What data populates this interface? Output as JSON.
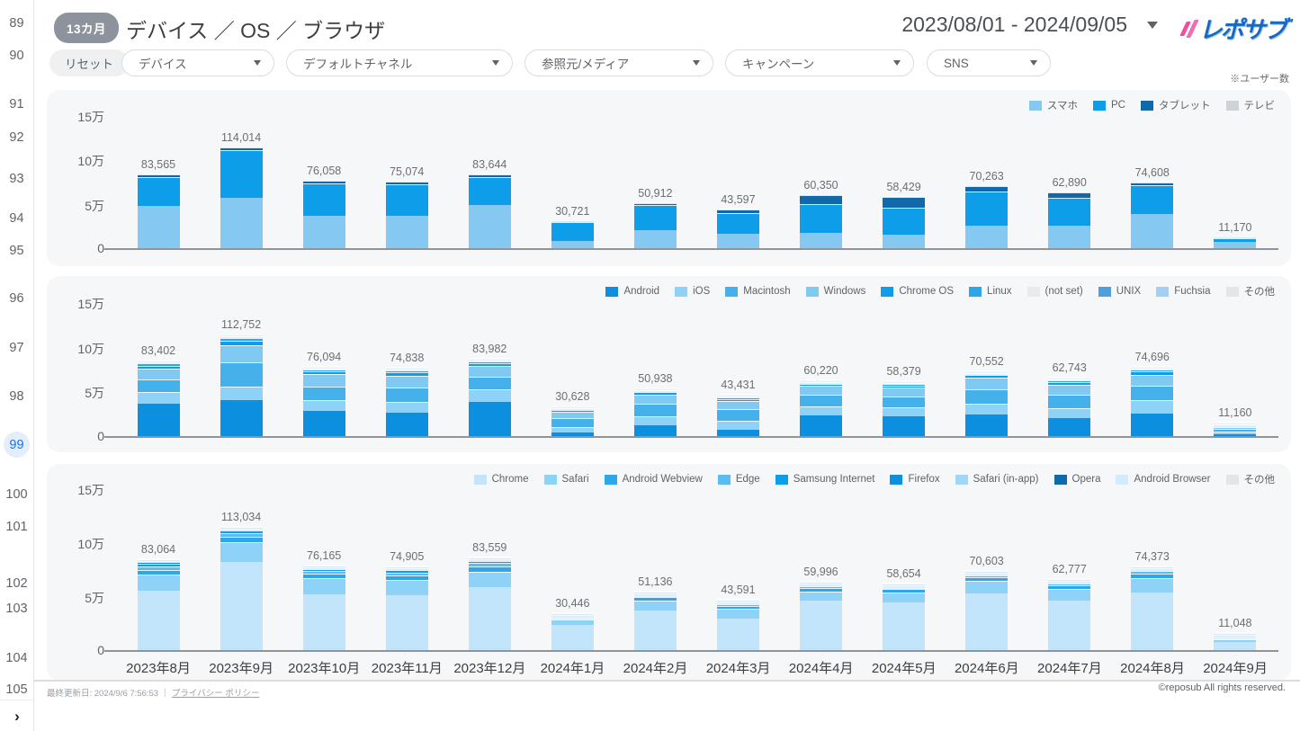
{
  "sidebar": {
    "pages": [
      "89",
      "90",
      "91",
      "92",
      "93",
      "94",
      "95",
      "96",
      "97",
      "98",
      "99",
      "100",
      "101",
      "102",
      "103",
      "104",
      "105"
    ],
    "active_page": "99",
    "next_icon": "›"
  },
  "header": {
    "period_badge": "13カ月",
    "title": "デバイス ／ OS ／ ブラウザ",
    "date_range": "2023/08/01 - 2024/09/05",
    "logo_text": "レポサブ",
    "unit_note": "※ユーザー数"
  },
  "filters": {
    "reset_label": "リセット",
    "dropdowns": [
      "デバイス",
      "デフォルトチャネル",
      "参照元/メディア",
      "キャンペーン",
      "SNS"
    ]
  },
  "chart_data": [
    {
      "type": "bar",
      "name": "device-users-stacked-bar",
      "title": "",
      "xlabel": "",
      "ylabel": "ユーザー数",
      "y_ticks": [
        "15万",
        "10万",
        "5万",
        "0"
      ],
      "y_max": 150000,
      "grid": false,
      "legend_position": "top-right",
      "show_x_labels": false,
      "categories": [
        "2023年8月",
        "2023年9月",
        "2023年10月",
        "2023年11月",
        "2023年12月",
        "2024年1月",
        "2024年2月",
        "2024年3月",
        "2024年4月",
        "2024年5月",
        "2024年6月",
        "2024年7月",
        "2024年8月",
        "2024年9月"
      ],
      "totals": [
        83565,
        114014,
        76058,
        75074,
        83644,
        30721,
        50912,
        43597,
        60350,
        58429,
        70263,
        62890,
        74608,
        11170
      ],
      "series": [
        {
          "name": "スマホ",
          "color": "#85c9f3",
          "values": [
            47500,
            56500,
            37000,
            36000,
            48500,
            8200,
            20500,
            16500,
            17500,
            15000,
            25500,
            25500,
            38500,
            7100
          ]
        },
        {
          "name": "PC",
          "color": "#0d9de9",
          "values": [
            32500,
            53500,
            35500,
            35500,
            31500,
            21000,
            27800,
            22800,
            31800,
            30800,
            38500,
            31000,
            32500,
            3800
          ]
        },
        {
          "name": "タブレット",
          "color": "#1168ab",
          "values": [
            3200,
            3700,
            3300,
            3300,
            3400,
            1400,
            2400,
            4100,
            10800,
            12400,
            6000,
            6100,
            3400,
            250
          ]
        },
        {
          "name": "テレビ",
          "color": "#ccd4da",
          "values": [
            365,
            314,
            258,
            274,
            244,
            121,
            212,
            197,
            250,
            229,
            263,
            290,
            208,
            20
          ]
        }
      ]
    },
    {
      "type": "bar",
      "name": "os-users-stacked-bar",
      "title": "",
      "xlabel": "",
      "ylabel": "ユーザー数",
      "y_ticks": [
        "15万",
        "10万",
        "5万",
        "0"
      ],
      "y_max": 150000,
      "grid": false,
      "legend_position": "top-right",
      "show_x_labels": false,
      "categories": [
        "2023年8月",
        "2023年9月",
        "2023年10月",
        "2023年11月",
        "2023年12月",
        "2024年1月",
        "2024年2月",
        "2024年3月",
        "2024年4月",
        "2024年5月",
        "2024年6月",
        "2024年7月",
        "2024年8月",
        "2024年9月"
      ],
      "totals": [
        83402,
        112752,
        76094,
        74838,
        83982,
        30628,
        50938,
        43431,
        60220,
        58379,
        70552,
        62743,
        74696,
        11160
      ],
      "series": [
        {
          "name": "Android",
          "color": "#0d8fe0",
          "values": [
            36000,
            40000,
            28000,
            26500,
            38500,
            4000,
            12500,
            7500,
            23000,
            22000,
            24000,
            20000,
            25500,
            2500
          ]
        },
        {
          "name": "iOS",
          "color": "#8ed2f7",
          "values": [
            13000,
            15000,
            12500,
            12000,
            13500,
            6500,
            10000,
            9500,
            10500,
            10000,
            12500,
            11500,
            14500,
            2800
          ]
        },
        {
          "name": "Macintosh",
          "color": "#45b1ea",
          "values": [
            14000,
            28000,
            15000,
            15500,
            14500,
            9500,
            13500,
            13000,
            13000,
            12500,
            16000,
            14500,
            16500,
            3200
          ]
        },
        {
          "name": "Windows",
          "color": "#7fc9f3",
          "values": [
            12500,
            19000,
            13500,
            13500,
            12000,
            7500,
            10500,
            9500,
            9500,
            9500,
            12500,
            11500,
            12500,
            1900
          ]
        },
        {
          "name": "Chrome OS",
          "color": "#0d9de9",
          "values": [
            3300,
            5200,
            3500,
            3800,
            3200,
            1800,
            2600,
            2300,
            2700,
            2800,
            3500,
            3200,
            3700,
            500
          ]
        },
        {
          "name": "Linux",
          "color": "#2ca7ea",
          "values": [
            2300,
            3000,
            2100,
            2200,
            1500,
            900,
            1200,
            1100,
            1100,
            1200,
            1500,
            1500,
            1500,
            200
          ]
        },
        {
          "name": "(not set)",
          "color": "#e8eaec",
          "values": [
            1200,
            1400,
            900,
            900,
            500,
            300,
            400,
            350,
            300,
            280,
            400,
            400,
            380,
            45
          ]
        },
        {
          "name": "UNIX",
          "color": "#4f9fdd",
          "values": [
            600,
            700,
            400,
            300,
            200,
            100,
            180,
            140,
            100,
            80,
            120,
            120,
            90,
            12
          ]
        },
        {
          "name": "Fuchsia",
          "color": "#a6cdf2",
          "values": [
            300,
            300,
            150,
            100,
            60,
            20,
            50,
            30,
            15,
            14,
            25,
            18,
            20,
            2
          ]
        },
        {
          "name": "その他",
          "color": "#e3e6e8",
          "values": [
            202,
            152,
            44,
            38,
            22,
            8,
            8,
            11,
            5,
            5,
            7,
            5,
            6,
            1
          ]
        }
      ]
    },
    {
      "type": "bar",
      "name": "browser-users-stacked-bar",
      "title": "",
      "xlabel": "",
      "ylabel": "ユーザー数",
      "y_ticks": [
        "15万",
        "10万",
        "5万",
        "0"
      ],
      "y_max": 150000,
      "grid": false,
      "legend_position": "top-right",
      "show_x_labels": true,
      "categories": [
        "2023年8月",
        "2023年9月",
        "2023年10月",
        "2023年11月",
        "2023年12月",
        "2024年1月",
        "2024年2月",
        "2024年3月",
        "2024年4月",
        "2024年5月",
        "2024年6月",
        "2024年7月",
        "2024年8月",
        "2024年9月"
      ],
      "totals": [
        83064,
        113034,
        76165,
        74905,
        83559,
        30446,
        51136,
        43591,
        59996,
        58654,
        70603,
        62777,
        74373,
        11048
      ],
      "series": [
        {
          "name": "Chrome",
          "color": "#c3e5fb",
          "values": [
            55000,
            82000,
            52000,
            51000,
            58000,
            23500,
            36500,
            29500,
            45500,
            44500,
            52500,
            45500,
            53000,
            7800
          ]
        },
        {
          "name": "Safari",
          "color": "#8ed2f7",
          "values": [
            15000,
            18000,
            14500,
            14000,
            14500,
            4500,
            9500,
            9000,
            9000,
            8800,
            11500,
            11000,
            14000,
            2400
          ]
        },
        {
          "name": "Android Webview",
          "color": "#2ca7ea",
          "values": [
            4500,
            5000,
            4000,
            4200,
            5200,
            1300,
            2800,
            2700,
            3000,
            3100,
            3800,
            3500,
            4200,
            550
          ]
        },
        {
          "name": "Edge",
          "color": "#5bbcf0",
          "values": [
            3200,
            3300,
            2800,
            2900,
            3300,
            700,
            1400,
            1500,
            1600,
            1400,
            1700,
            1700,
            2100,
            220
          ]
        },
        {
          "name": "Samsung Internet",
          "color": "#0d9de9",
          "values": [
            2200,
            2200,
            1600,
            1700,
            1700,
            300,
            600,
            550,
            550,
            500,
            650,
            650,
            700,
            55
          ]
        },
        {
          "name": "Firefox",
          "color": "#0d8fe0",
          "values": [
            1500,
            1400,
            800,
            750,
            600,
            120,
            250,
            250,
            250,
            250,
            320,
            320,
            280,
            18
          ]
        },
        {
          "name": "Safari (in-app)",
          "color": "#9fd7f8",
          "values": [
            900,
            700,
            320,
            250,
            200,
            20,
            70,
            70,
            70,
            80,
            100,
            80,
            75,
            4
          ]
        },
        {
          "name": "Opera",
          "color": "#1168ab",
          "values": [
            400,
            280,
            100,
            80,
            45,
            4,
            12,
            15,
            20,
            18,
            25,
            20,
            14,
            0
          ]
        },
        {
          "name": "Android Browser",
          "color": "#d4ebfc",
          "values": [
            250,
            120,
            35,
            20,
            12,
            1,
            3,
            4,
            5,
            5,
            6,
            5,
            3,
            1
          ]
        },
        {
          "name": "その他",
          "color": "#e3e6e8",
          "values": [
            114,
            34,
            10,
            5,
            2,
            1,
            1,
            2,
            1,
            1,
            2,
            2,
            1,
            0
          ]
        }
      ]
    }
  ],
  "footer": {
    "last_updated": "最終更新日: 2024/9/6 7:56:53",
    "separator": "｜",
    "privacy_link": "プライバシー ポリシー",
    "copyright": "©reposub All rights reserved."
  }
}
